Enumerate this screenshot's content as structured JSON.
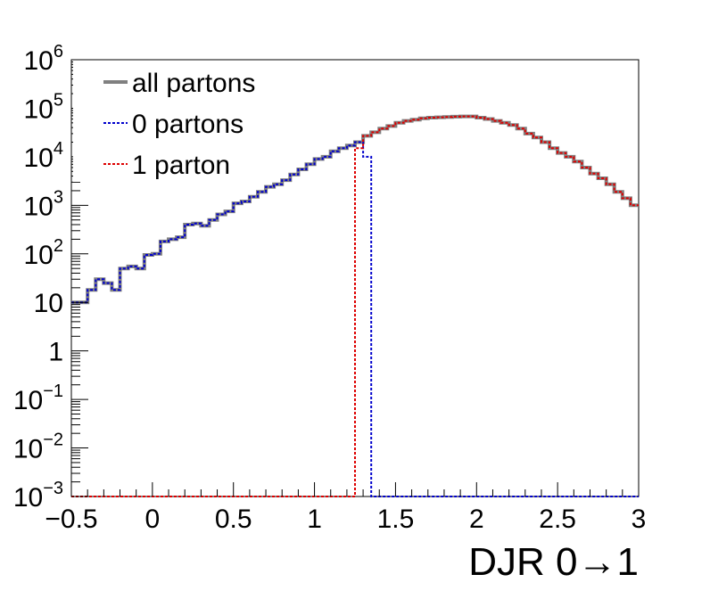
{
  "chart_data": {
    "type": "line",
    "style": "step-histogram",
    "title": "",
    "xlabel": "DJR 0→1",
    "ylabel": "",
    "xlim": [
      -0.5,
      3.0
    ],
    "ylim": [
      0.001,
      1000000
    ],
    "yscale": "log",
    "legend_position": "top-left",
    "x_ticks": [
      "−0.5",
      "0",
      "0.5",
      "1",
      "1.5",
      "2",
      "2.5",
      "3"
    ],
    "x_tick_values": [
      -0.5,
      0,
      0.5,
      1,
      1.5,
      2,
      2.5,
      3
    ],
    "y_ticks": [
      {
        "value": 1000000,
        "base": "10",
        "exp": "6"
      },
      {
        "value": 100000,
        "base": "10",
        "exp": "5"
      },
      {
        "value": 10000,
        "base": "10",
        "exp": "4"
      },
      {
        "value": 1000,
        "base": "10",
        "exp": "3"
      },
      {
        "value": 100,
        "base": "10",
        "exp": "2"
      },
      {
        "value": 10,
        "base": "10",
        "exp": ""
      },
      {
        "value": 1,
        "base": "1",
        "exp": ""
      },
      {
        "value": 0.1,
        "base": "10",
        "exp": "−1"
      },
      {
        "value": 0.01,
        "base": "10",
        "exp": "−2"
      },
      {
        "value": 0.001,
        "base": "10",
        "exp": "−3"
      }
    ],
    "bin_edges": [
      -0.5,
      -0.45,
      -0.4,
      -0.35,
      -0.3,
      -0.25,
      -0.2,
      -0.15,
      -0.1,
      -0.05,
      0.0,
      0.05,
      0.1,
      0.15,
      0.2,
      0.25,
      0.3,
      0.35,
      0.4,
      0.45,
      0.5,
      0.55,
      0.6,
      0.65,
      0.7,
      0.75,
      0.8,
      0.85,
      0.9,
      0.95,
      1.0,
      1.05,
      1.1,
      1.15,
      1.2,
      1.25,
      1.3,
      1.35,
      1.4,
      1.45,
      1.5,
      1.55,
      1.6,
      1.65,
      1.7,
      1.75,
      1.8,
      1.85,
      1.9,
      1.95,
      2.0,
      2.05,
      2.1,
      2.15,
      2.2,
      2.25,
      2.3,
      2.35,
      2.4,
      2.45,
      2.5,
      2.55,
      2.6,
      2.65,
      2.7,
      2.75,
      2.8,
      2.85,
      2.9,
      2.95,
      3.0
    ],
    "series": [
      {
        "name": "all partons",
        "color": "#808080",
        "line_style": "solid",
        "values": [
          10,
          10,
          18,
          30,
          25,
          18,
          50,
          55,
          50,
          95,
          100,
          180,
          200,
          220,
          400,
          420,
          380,
          500,
          650,
          750,
          1100,
          1200,
          1500,
          1900,
          2400,
          2700,
          3300,
          4300,
          5500,
          7000,
          9000,
          10000,
          13000,
          15000,
          17000,
          20000,
          27000,
          32000,
          38000,
          43000,
          50000,
          55000,
          58000,
          62000,
          64000,
          65000,
          66000,
          67000,
          68000,
          68000,
          64000,
          60000,
          55000,
          50000,
          45000,
          38000,
          30000,
          25000,
          20000,
          15000,
          12000,
          10000,
          8000,
          6000,
          4500,
          3600,
          2700,
          1900,
          1400,
          1000
        ]
      },
      {
        "name": "0 partons",
        "color": "#0000cc",
        "line_style": "dotted",
        "values": [
          10,
          10,
          18,
          30,
          25,
          18,
          50,
          55,
          50,
          95,
          100,
          180,
          200,
          220,
          400,
          420,
          380,
          500,
          650,
          750,
          1100,
          1200,
          1500,
          1900,
          2400,
          2700,
          3300,
          4300,
          5500,
          7000,
          9000,
          10000,
          13000,
          15000,
          17000,
          20000,
          10000,
          0.001,
          0.001,
          0.001,
          0.001,
          0.001,
          0.001,
          0.001,
          0.001,
          0.001,
          0.001,
          0.001,
          0.001,
          0.001,
          0.001,
          0.001,
          0.001,
          0.001,
          0.001,
          0.001,
          0.001,
          0.001,
          0.001,
          0.001,
          0.001,
          0.001,
          0.001,
          0.001,
          0.001,
          0.001,
          0.001,
          0.001,
          0.001,
          0.001
        ]
      },
      {
        "name": "1 parton",
        "color": "#dd0000",
        "line_style": "dotted",
        "values": [
          0.001,
          0.001,
          0.001,
          0.001,
          0.001,
          0.001,
          0.001,
          0.001,
          0.001,
          0.001,
          0.001,
          0.001,
          0.001,
          0.001,
          0.001,
          0.001,
          0.001,
          0.001,
          0.001,
          0.001,
          0.001,
          0.001,
          0.001,
          0.001,
          0.001,
          0.001,
          0.001,
          0.001,
          0.001,
          0.001,
          0.001,
          0.001,
          0.001,
          0.001,
          0.001,
          15000,
          27000,
          32000,
          38000,
          43000,
          50000,
          55000,
          58000,
          62000,
          64000,
          65000,
          66000,
          67000,
          68000,
          68000,
          64000,
          60000,
          55000,
          50000,
          45000,
          38000,
          30000,
          25000,
          20000,
          15000,
          12000,
          10000,
          8000,
          6000,
          4500,
          3600,
          2700,
          1900,
          1400,
          1000
        ]
      }
    ]
  }
}
